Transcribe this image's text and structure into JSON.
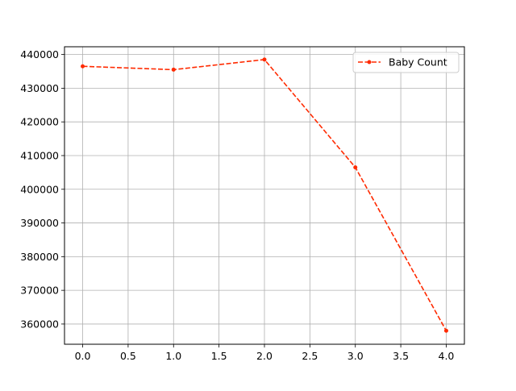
{
  "chart_data": {
    "type": "line",
    "title": "",
    "xlabel": "",
    "ylabel": "",
    "x": [
      0.0,
      1.0,
      2.0,
      3.0,
      4.0
    ],
    "series": [
      {
        "name": "Baby Count",
        "values": [
          436500,
          435500,
          438500,
          406500,
          358000
        ],
        "color": "#ff2a00",
        "line_style": "dashed",
        "marker": "circle"
      }
    ],
    "xlim": [
      -0.2,
      4.2
    ],
    "ylim": [
      354000,
      442300
    ],
    "xticks": [
      0.0,
      0.5,
      1.0,
      1.5,
      2.0,
      2.5,
      3.0,
      3.5,
      4.0
    ],
    "xtick_labels": [
      "0.0",
      "0.5",
      "1.0",
      "1.5",
      "2.0",
      "2.5",
      "3.0",
      "3.5",
      "4.0"
    ],
    "yticks": [
      360000,
      370000,
      380000,
      390000,
      400000,
      410000,
      420000,
      430000,
      440000
    ],
    "ytick_labels": [
      "360000",
      "370000",
      "380000",
      "390000",
      "400000",
      "410000",
      "420000",
      "430000",
      "440000"
    ],
    "grid": true,
    "legend": "top-right"
  }
}
